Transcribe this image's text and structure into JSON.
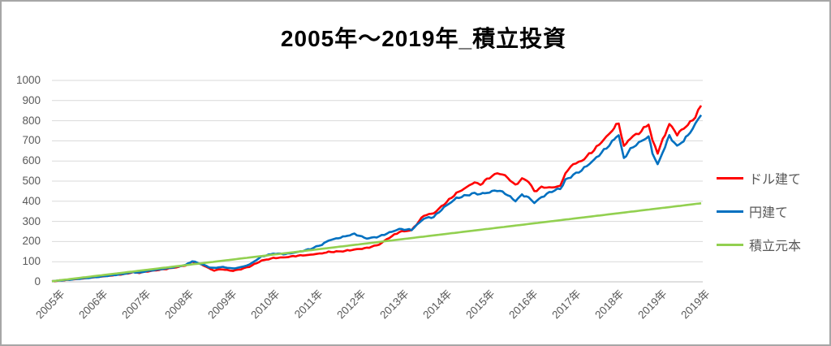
{
  "chart_data": {
    "type": "line",
    "title": "2005年～2019年_積立投資",
    "xlabel": "",
    "ylabel": "",
    "ylim": [
      0,
      1000
    ],
    "grid": "horizontal",
    "grid_color": "#d9d9d9",
    "axis_line_color": "#bfbfbf",
    "tick_text_color": "#595959",
    "legend_position": "right",
    "y_ticks": [
      0,
      100,
      200,
      300,
      400,
      500,
      600,
      700,
      800,
      900,
      1000
    ],
    "x_tick_labels": [
      "2005年",
      "2006年",
      "2007年",
      "2008年",
      "2009年",
      "2010年",
      "2011年",
      "2012年",
      "2013年",
      "2014年",
      "2015年",
      "2016年",
      "2017年",
      "2018年",
      "2019年",
      "2019年"
    ],
    "legend": [
      {
        "name": "ドル建て",
        "color": "#ff0000"
      },
      {
        "name": "円建て",
        "color": "#0070c0"
      },
      {
        "name": "積立元本",
        "color": "#92d050"
      }
    ],
    "t": [
      0,
      0.035,
      0.073,
      0.11,
      0.125,
      0.135,
      0.148,
      0.173,
      0.191,
      0.206,
      0.216,
      0.229,
      0.238,
      0.245,
      0.25,
      0.26,
      0.27,
      0.279,
      0.291,
      0.304,
      0.323,
      0.341,
      0.36,
      0.379,
      0.398,
      0.416,
      0.426,
      0.438,
      0.448,
      0.466,
      0.485,
      0.504,
      0.516,
      0.535,
      0.554,
      0.573,
      0.588,
      0.604,
      0.623,
      0.639,
      0.651,
      0.66,
      0.67,
      0.686,
      0.698,
      0.714,
      0.724,
      0.734,
      0.743,
      0.754,
      0.77,
      0.783,
      0.791,
      0.803,
      0.816,
      0.835,
      0.854,
      0.863,
      0.869,
      0.873,
      0.881,
      0.891,
      0.904,
      0.919,
      0.925,
      0.933,
      0.941,
      0.951,
      0.963,
      0.973,
      0.983,
      0.991,
      1.0
    ],
    "series": [
      {
        "name": "ドル建て",
        "color": "#ff0000",
        "jitter": true,
        "values": [
          3,
          13,
          25,
          38,
          47,
          45,
          52,
          63,
          72,
          82,
          100,
          88,
          74,
          62,
          56,
          63,
          58,
          55,
          63,
          75,
          105,
          118,
          122,
          130,
          134,
          142,
          148,
          150,
          152,
          160,
          168,
          185,
          212,
          248,
          256,
          330,
          340,
          385,
          440,
          470,
          495,
          482,
          510,
          540,
          528,
          480,
          512,
          500,
          448,
          470,
          468,
          476,
          540,
          585,
          600,
          655,
          720,
          750,
          777,
          790,
          670,
          716,
          737,
          785,
          700,
          642,
          705,
          785,
          732,
          762,
          790,
          820,
          875
        ]
      },
      {
        "name": "円建て",
        "color": "#0070c0",
        "jitter": true,
        "values": [
          3,
          13,
          25,
          39,
          48,
          46,
          54,
          65,
          74,
          84,
          102,
          90,
          78,
          70,
          68,
          74,
          70,
          66,
          73,
          85,
          126,
          140,
          138,
          148,
          163,
          185,
          205,
          215,
          223,
          238,
          215,
          225,
          240,
          262,
          258,
          315,
          322,
          370,
          415,
          430,
          440,
          436,
          442,
          455,
          440,
          402,
          432,
          420,
          392,
          420,
          450,
          462,
          505,
          530,
          555,
          605,
          665,
          695,
          718,
          730,
          612,
          660,
          690,
          722,
          640,
          582,
          645,
          725,
          672,
          702,
          740,
          785,
          828
        ]
      },
      {
        "name": "積立元本",
        "color": "#92d050",
        "jitter": false,
        "t_own": [
          0,
          1.0
        ],
        "values": [
          3,
          390
        ]
      }
    ]
  }
}
